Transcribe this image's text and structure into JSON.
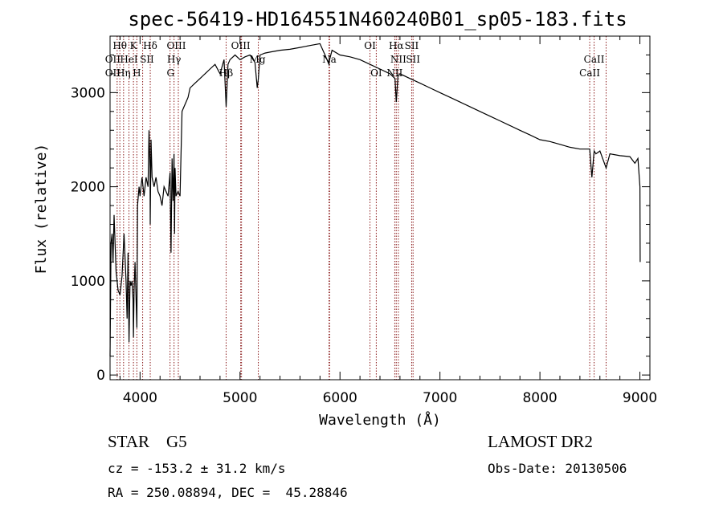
{
  "chart_data": {
    "type": "line",
    "title": "spec-56419-HD164551N460240B01_sp05-183.fits",
    "xlabel": "Wavelength (Å)",
    "ylabel": "Flux (relative)",
    "xlim": [
      3700,
      9100
    ],
    "ylim": [
      -50,
      3600
    ],
    "x_ticks": [
      4000,
      5000,
      6000,
      7000,
      8000,
      9000
    ],
    "y_ticks": [
      0,
      1000,
      2000,
      3000
    ],
    "grid": false,
    "series": [
      {
        "x": [
          3700,
          3710,
          3720,
          3730,
          3740,
          3760,
          3780,
          3800,
          3820,
          3840,
          3860,
          3870,
          3880,
          3890,
          3900,
          3910,
          3920,
          3930,
          3934,
          3940,
          3950,
          3960,
          3968,
          3975,
          3990,
          4000,
          4020,
          4040,
          4060,
          4080,
          4090,
          4100,
          4102,
          4110,
          4120,
          4140,
          4160,
          4180,
          4200,
          4220,
          4240,
          4260,
          4280,
          4300,
          4310,
          4320,
          4330,
          4340,
          4345,
          4350,
          4360,
          4380,
          4400,
          4420,
          4440,
          4460,
          4480,
          4500,
          4550,
          4600,
          4650,
          4700,
          4750,
          4800,
          4840,
          4861,
          4880,
          4900,
          4950,
          5000,
          5050,
          5100,
          5150,
          5172,
          5183,
          5200,
          5250,
          5300,
          5400,
          5500,
          5600,
          5700,
          5800,
          5850,
          5890,
          5896,
          5920,
          6000,
          6100,
          6200,
          6300,
          6400,
          6500,
          6550,
          6563,
          6580,
          6600,
          6700,
          6800,
          6900,
          7000,
          7100,
          7200,
          7300,
          7400,
          7500,
          7600,
          7700,
          7800,
          7900,
          8000,
          8100,
          8200,
          8300,
          8400,
          8498,
          8520,
          8542,
          8560,
          8600,
          8662,
          8700,
          8800,
          8900,
          8950,
          8980,
          9000,
          9003
        ],
        "y": [
          200,
          1400,
          1500,
          1200,
          1700,
          1100,
          900,
          850,
          1050,
          1500,
          1000,
          600,
          1300,
          350,
          1000,
          950,
          1000,
          800,
          400,
          900,
          1200,
          800,
          500,
          1800,
          2000,
          1900,
          2100,
          1900,
          2100,
          2000,
          2600,
          2200,
          1600,
          2500,
          2100,
          2000,
          2100,
          1950,
          1900,
          1800,
          2000,
          1950,
          1900,
          2150,
          1300,
          2300,
          1850,
          2350,
          1500,
          2200,
          1900,
          1950,
          1900,
          2800,
          2850,
          2900,
          2950,
          3050,
          3100,
          3150,
          3200,
          3250,
          3300,
          3200,
          3350,
          2850,
          3300,
          3350,
          3400,
          3350,
          3380,
          3400,
          3320,
          3050,
          3150,
          3400,
          3420,
          3430,
          3450,
          3460,
          3480,
          3500,
          3520,
          3400,
          3300,
          3350,
          3450,
          3400,
          3380,
          3350,
          3300,
          3250,
          3200,
          3150,
          2900,
          3180,
          3200,
          3150,
          3100,
          3050,
          3000,
          2950,
          2900,
          2850,
          2800,
          2750,
          2700,
          2650,
          2600,
          2550,
          2500,
          2480,
          2450,
          2420,
          2400,
          2400,
          2100,
          2380,
          2350,
          2380,
          2200,
          2350,
          2330,
          2320,
          2250,
          2300,
          2000,
          1200
        ]
      }
    ],
    "lines": {
      "x": [
        3771,
        3798,
        3835,
        3889,
        3934,
        3968,
        4026,
        4102,
        4300,
        4340,
        4383,
        4861,
        5007,
        5015,
        5183,
        5890,
        5896,
        6300,
        6363,
        6548,
        6563,
        6584,
        6717,
        6731,
        8498,
        8542,
        8662
      ],
      "top_row": [
        {
          "text": "Hθ",
          "x": 3798
        },
        {
          "text": "K",
          "x": 3934
        },
        {
          "text": "Hδ",
          "x": 4102
        },
        {
          "text": "OIII",
          "x": 4363
        },
        {
          "text": "OIII",
          "x": 5007
        },
        {
          "text": "OI",
          "x": 6300
        },
        {
          "text": "Hα",
          "x": 6563
        },
        {
          "text": "SII",
          "x": 6717
        }
      ],
      "middle_row": [
        {
          "text": "OII",
          "x": 3727
        },
        {
          "text": "HeI",
          "x": 3889
        },
        {
          "text": "SII",
          "x": 4069
        },
        {
          "text": "Hγ",
          "x": 4340
        },
        {
          "text": "Mg",
          "x": 5175
        },
        {
          "text": "Na",
          "x": 5893
        },
        {
          "text": "NII",
          "x": 6584
        },
        {
          "text": "SII",
          "x": 6731
        },
        {
          "text": "CaII",
          "x": 8542
        }
      ],
      "bottom_row": [
        {
          "text": "OII",
          "x": 3727
        },
        {
          "text": "Hη",
          "x": 3835
        },
        {
          "text": "H",
          "x": 3968
        },
        {
          "text": "G",
          "x": 4305
        },
        {
          "text": "Hβ",
          "x": 4861
        },
        {
          "text": "OI",
          "x": 6363
        },
        {
          "text": "NII",
          "x": 6548
        },
        {
          "text": "CaII",
          "x": 8498
        }
      ]
    }
  },
  "info": {
    "object": "STAR    G5",
    "survey": "LAMOST DR2",
    "cz": "cz = -153.2 ± 31.2 km/s",
    "obs_date": "Obs-Date: 20130506",
    "radec": "RA = 250.08894, DEC =  45.28846"
  },
  "colors": {
    "line_markers": "#8b1a1a",
    "spectrum": "#000000"
  }
}
